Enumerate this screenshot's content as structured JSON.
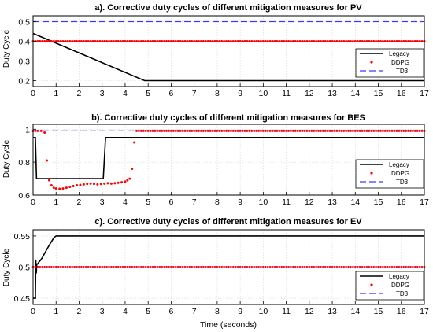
{
  "figure": {
    "xlabel": "Time (seconds)",
    "colors": {
      "legacy": "#000000",
      "ddpg": "#ff0000",
      "td3": "#3b3bff",
      "grid": "#d4d4d4"
    }
  },
  "chart_data": [
    {
      "type": "line",
      "title": "a). Corrective duty cycles of different mitigation measures for  PV",
      "ylabel": "Duty Cycle",
      "xlim": [
        0,
        17
      ],
      "ylim": [
        0.17,
        0.53
      ],
      "xticks": [
        0,
        1,
        2,
        3,
        4,
        5,
        6,
        7,
        8,
        9,
        10,
        11,
        12,
        13,
        14,
        15,
        16,
        17
      ],
      "yticks": [
        0.2,
        0.3,
        0.4,
        0.5
      ],
      "ytick_labels": [
        "0.2",
        "0.3",
        "0.4",
        "0.5"
      ],
      "grid": true,
      "legend_position": "right",
      "series": [
        {
          "name": "Legacy",
          "style": "line",
          "x": [
            0,
            4.85,
            17
          ],
          "y": [
            0.44,
            0.2,
            0.2
          ]
        },
        {
          "name": "DDPG",
          "style": "dots",
          "x": [
            0,
            17
          ],
          "y": [
            0.4,
            0.4
          ],
          "step": 0.1
        },
        {
          "name": "TD3",
          "style": "dash",
          "x": [
            0,
            17
          ],
          "y": [
            0.5,
            0.5
          ]
        }
      ]
    },
    {
      "type": "line",
      "title": "b). Corrective duty cycles of different mitigation measures for BES",
      "ylabel": "Duty Cycle",
      "xlim": [
        0,
        17
      ],
      "ylim": [
        0.6,
        1.03
      ],
      "xticks": [
        0,
        1,
        2,
        3,
        4,
        5,
        6,
        7,
        8,
        9,
        10,
        11,
        12,
        13,
        14,
        15,
        16,
        17
      ],
      "yticks": [
        0.6,
        0.8,
        1.0
      ],
      "ytick_labels": [
        "0.6",
        "0.8",
        "1"
      ],
      "grid": true,
      "legend_position": "right",
      "series": [
        {
          "name": "Legacy",
          "style": "line",
          "x": [
            0,
            0.1,
            0.15,
            3.05,
            3.15,
            17
          ],
          "y": [
            0.95,
            0.95,
            0.7,
            0.7,
            0.95,
            0.95
          ]
        },
        {
          "name": "DDPG",
          "style": "dots",
          "x": [
            0,
            0.1,
            0.2,
            0.35,
            0.5,
            0.6,
            0.7,
            0.8,
            0.9,
            1.0,
            1.15,
            1.3,
            1.45,
            1.6,
            1.75,
            1.9,
            2.05,
            2.2,
            2.35,
            2.5,
            2.65,
            2.8,
            2.95,
            3.1,
            3.25,
            3.4,
            3.55,
            3.7,
            3.85,
            4.0,
            4.1,
            4.2,
            4.3,
            4.4
          ],
          "y": [
            0.99,
            0.99,
            0.99,
            0.99,
            0.98,
            0.81,
            0.69,
            0.66,
            0.645,
            0.64,
            0.638,
            0.64,
            0.645,
            0.65,
            0.655,
            0.66,
            0.662,
            0.665,
            0.668,
            0.67,
            0.668,
            0.665,
            0.668,
            0.67,
            0.672,
            0.67,
            0.672,
            0.675,
            0.678,
            0.682,
            0.69,
            0.7,
            0.76,
            0.92
          ],
          "extra": {
            "x": [
              4.5,
              17
            ],
            "y": [
              0.99,
              0.99
            ],
            "step": 0.1
          }
        },
        {
          "name": "TD3",
          "style": "dash",
          "x": [
            0,
            17
          ],
          "y": [
            0.99,
            0.99
          ]
        }
      ]
    },
    {
      "type": "line",
      "title": "c).  Corrective duty cycles of different mitigation measures for EV",
      "ylabel": "Duty Cycle",
      "xlim": [
        0,
        17
      ],
      "ylim": [
        0.44,
        0.56
      ],
      "xticks": [
        0,
        1,
        2,
        3,
        4,
        5,
        6,
        7,
        8,
        9,
        10,
        11,
        12,
        13,
        14,
        15,
        16,
        17
      ],
      "yticks": [
        0.45,
        0.5,
        0.55
      ],
      "ytick_labels": [
        "0.45",
        "0.5",
        "0.55"
      ],
      "grid": true,
      "legend_position": "right",
      "series": [
        {
          "name": "Legacy",
          "style": "line",
          "x": [
            0,
            0.1,
            0.12,
            0.14,
            0.16,
            0.2,
            0.25,
            0.3,
            0.4,
            0.5,
            0.7,
            0.9,
            1.0,
            17
          ],
          "y": [
            0.45,
            0.45,
            0.512,
            0.49,
            0.505,
            0.505,
            0.508,
            0.51,
            0.515,
            0.522,
            0.535,
            0.547,
            0.55,
            0.55
          ]
        },
        {
          "name": "DDPG",
          "style": "dots",
          "x": [
            0,
            17
          ],
          "y": [
            0.5,
            0.5
          ],
          "step": 0.1
        },
        {
          "name": "TD3",
          "style": "dash",
          "x": [
            0,
            17
          ],
          "y": [
            0.5,
            0.5
          ]
        }
      ]
    }
  ]
}
